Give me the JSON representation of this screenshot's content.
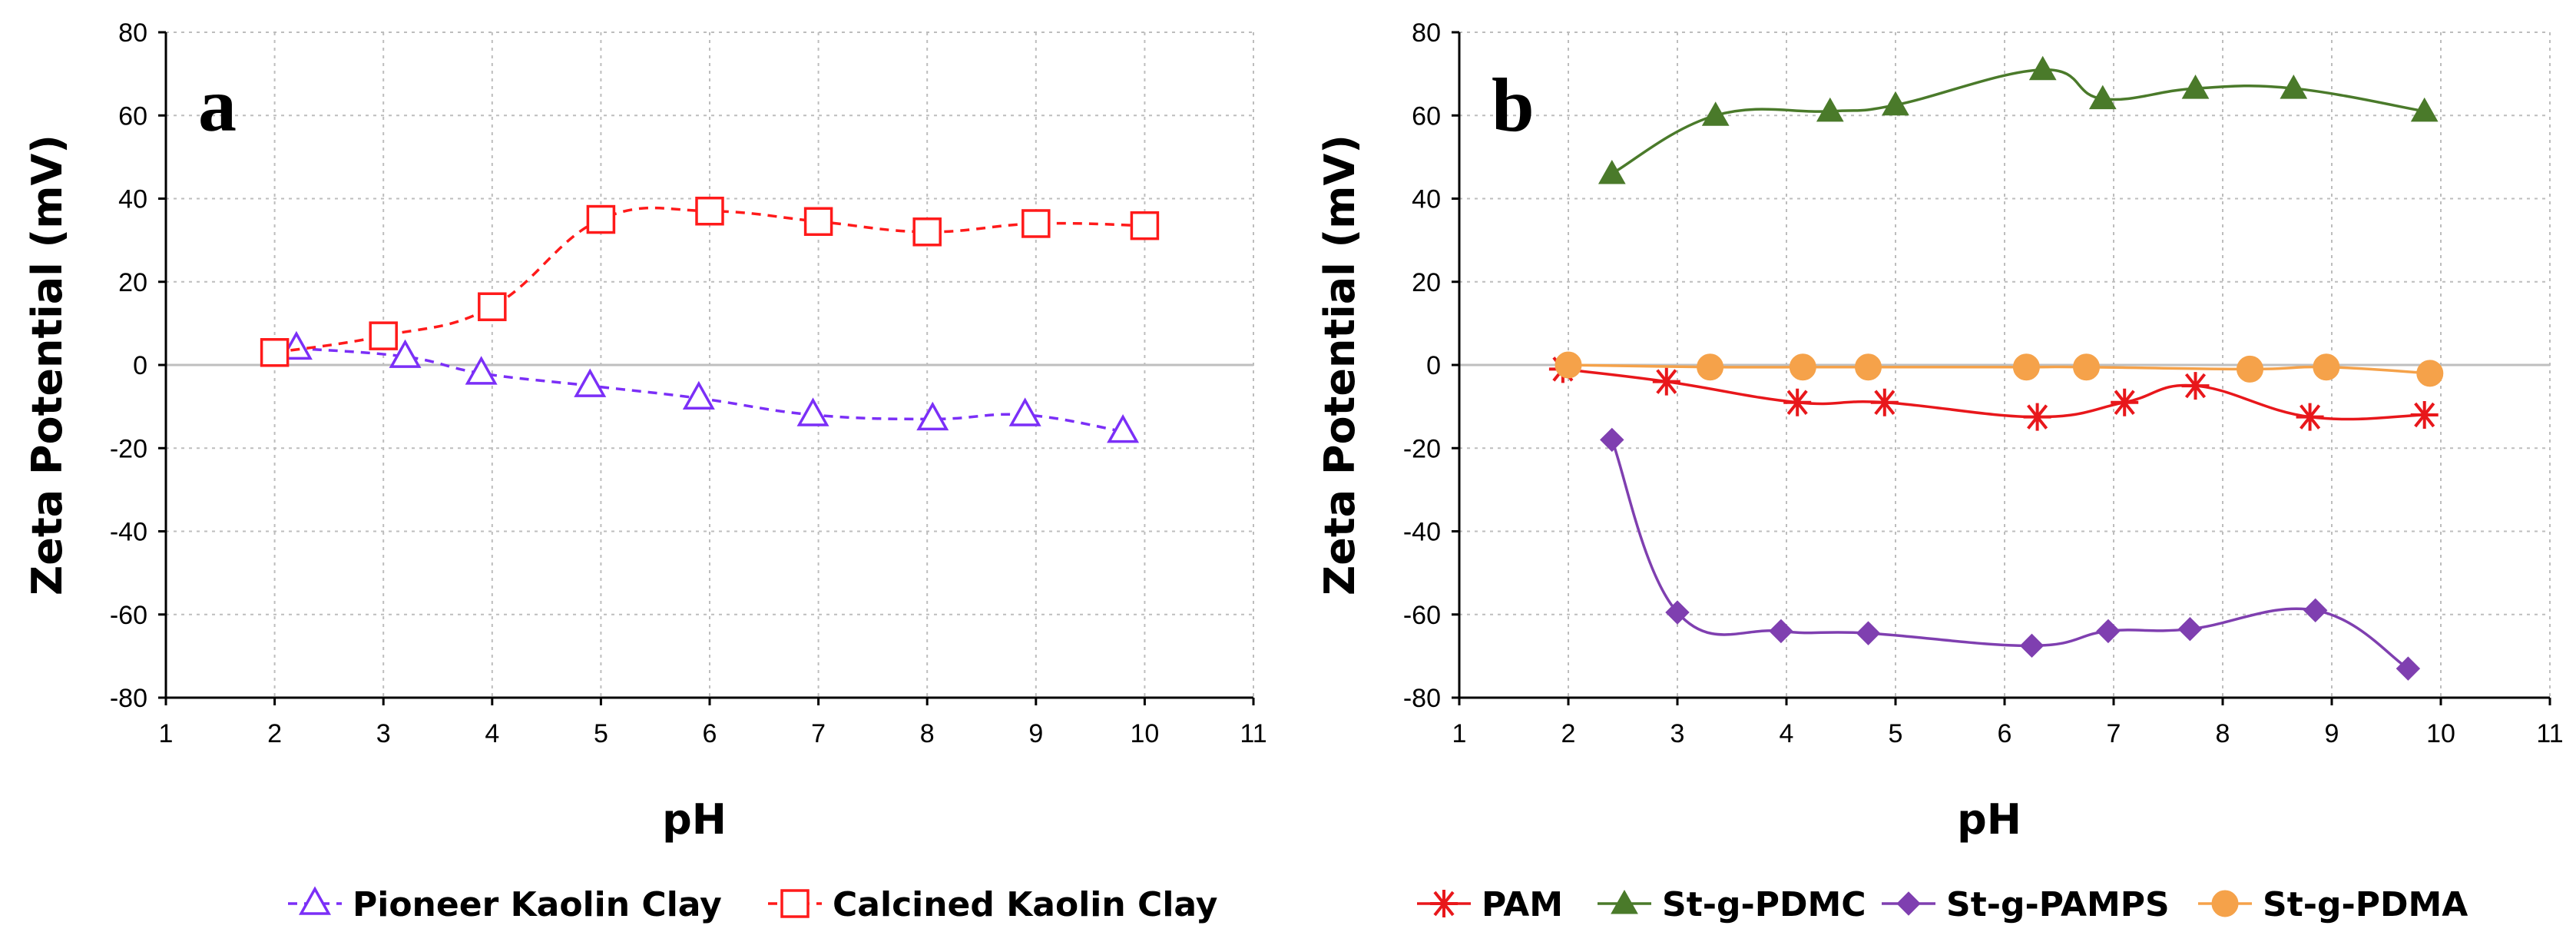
{
  "chart_data": [
    {
      "id": "a",
      "type": "line",
      "panel_label": "a",
      "xlabel": "pH",
      "ylabel": "Zeta Potential (mV)",
      "xlim": [
        1,
        11
      ],
      "ylim": [
        -80,
        80
      ],
      "xticks": [
        1,
        2,
        3,
        4,
        5,
        6,
        7,
        8,
        9,
        10,
        11
      ],
      "yticks": [
        -80,
        -60,
        -40,
        -20,
        0,
        20,
        40,
        60,
        80
      ],
      "grid": true,
      "legend_position": "bottom",
      "series": [
        {
          "name": "Pioneer Kaolin Clay",
          "color": "#7B2FF7",
          "marker": "triangle-open",
          "line": "dashed",
          "x": [
            2.2,
            3.2,
            3.9,
            4.9,
            5.9,
            6.95,
            8.05,
            8.9,
            9.8
          ],
          "y": [
            4,
            2,
            -2,
            -5,
            -8,
            -12,
            -13,
            -12,
            -16
          ]
        },
        {
          "name": "Calcined Kaolin Clay",
          "color": "#FF1A1A",
          "marker": "square-open",
          "line": "dashed",
          "x": [
            2,
            3,
            4,
            5,
            6,
            7,
            8,
            9,
            10
          ],
          "y": [
            3,
            7,
            14,
            35,
            37,
            34.5,
            32,
            34,
            33.5
          ]
        }
      ]
    },
    {
      "id": "b",
      "type": "line",
      "panel_label": "b",
      "xlabel": "pH",
      "ylabel": "Zeta Potential (mV)",
      "xlim": [
        1,
        11
      ],
      "ylim": [
        -80,
        80
      ],
      "xticks": [
        1,
        2,
        3,
        4,
        5,
        6,
        7,
        8,
        9,
        10,
        11
      ],
      "yticks": [
        -80,
        -60,
        -40,
        -20,
        0,
        20,
        40,
        60,
        80
      ],
      "grid": true,
      "legend_position": "bottom",
      "series": [
        {
          "name": "PAM",
          "color": "#E8171B",
          "marker": "star",
          "line": "solid",
          "x": [
            1.95,
            2.9,
            4.1,
            4.9,
            6.3,
            7.1,
            7.75,
            8.8,
            9.85
          ],
          "y": [
            -1,
            -4,
            -9,
            -9,
            -12.5,
            -9,
            -5,
            -12.5,
            -12
          ]
        },
        {
          "name": "St-g-PDMC",
          "color": "#4A7A2A",
          "marker": "triangle",
          "line": "solid",
          "x": [
            2.4,
            3.35,
            4.4,
            5,
            6.35,
            6.9,
            7.75,
            8.65,
            9.85
          ],
          "y": [
            46,
            60,
            61,
            62.5,
            71,
            64,
            66.5,
            66.5,
            61
          ]
        },
        {
          "name": "St-g-PAMPS",
          "color": "#7F3FB0",
          "marker": "diamond",
          "line": "solid",
          "x": [
            2.4,
            3,
            3.95,
            4.75,
            6.25,
            6.95,
            7.7,
            8.85,
            9.7
          ],
          "y": [
            -18,
            -59.5,
            -64,
            -64.5,
            -67.5,
            -64,
            -63.5,
            -59,
            -73
          ]
        },
        {
          "name": "St-g-PDMA",
          "color": "#F5A24A",
          "marker": "circle",
          "line": "solid",
          "x": [
            2,
            3.3,
            4.15,
            4.75,
            6.2,
            6.75,
            8.25,
            8.95,
            9.9
          ],
          "y": [
            0,
            -0.5,
            -0.5,
            -0.5,
            -0.5,
            -0.5,
            -1,
            -0.5,
            -2
          ]
        }
      ]
    }
  ]
}
